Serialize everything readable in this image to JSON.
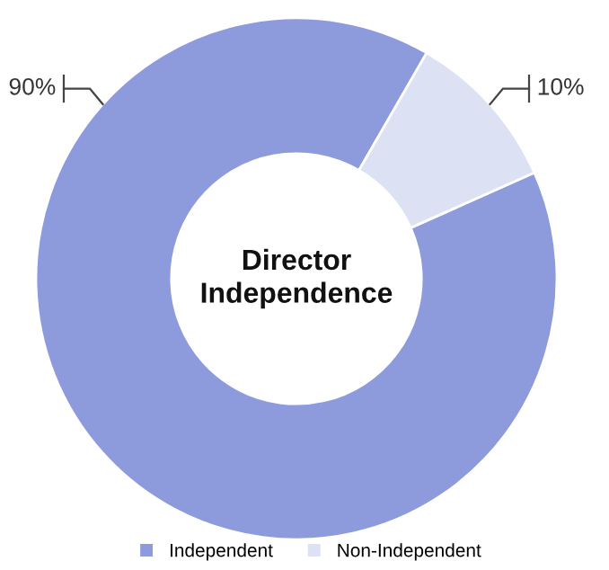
{
  "chart_data": {
    "type": "donut",
    "title": "Director Independence",
    "categories": [
      "Independent",
      "Non-Independent"
    ],
    "values": [
      90,
      10
    ],
    "colors": [
      "#8d9bdc",
      "#dde1f4"
    ],
    "value_labels": [
      "90%",
      "10%"
    ],
    "legend": "bottom"
  }
}
